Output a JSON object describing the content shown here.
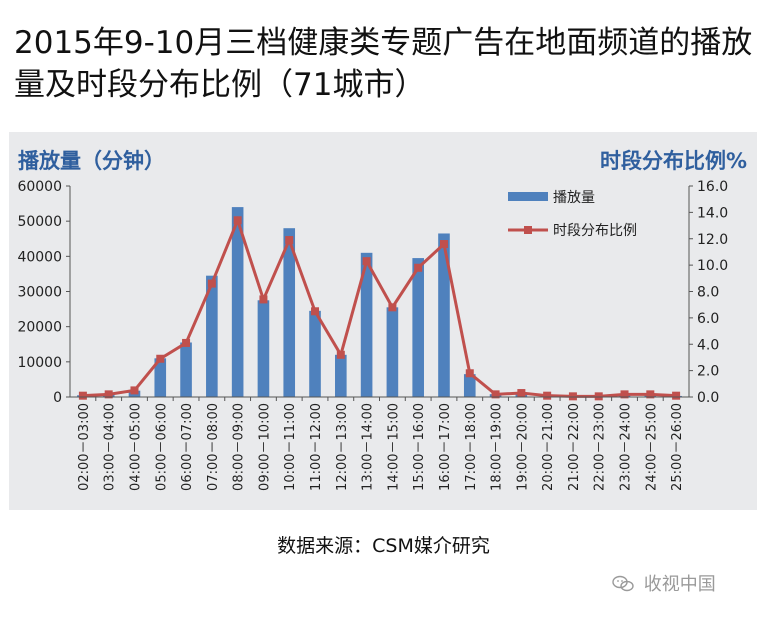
{
  "title": "2015年9-10月三档健康类专题广告在地面频道的播放量及时段分布比例（71城市）",
  "source_text": "数据来源：CSM媒介研究",
  "watermark": "收视中国",
  "colors": {
    "bar": "#4f81bd",
    "line": "#c0504d",
    "axis_title": "#2f5f9e",
    "panel": "#e9eaec"
  },
  "chart_data": {
    "type": "bar+line",
    "ylabel_left": "播放量（分钟）",
    "ylabel_right": "时段分布比例%",
    "ylim_left": [
      0,
      60000
    ],
    "ylim_right": [
      0,
      16
    ],
    "yticks_left": [
      "0",
      "10000",
      "20000",
      "30000",
      "40000",
      "50000",
      "60000"
    ],
    "yticks_right": [
      "0.0",
      "2.0",
      "4.0",
      "6.0",
      "8.0",
      "10.0",
      "12.0",
      "14.0",
      "16.0"
    ],
    "categories": [
      "02:00－03:00",
      "03:00－04:00",
      "04:00－05:00",
      "05:00－06:00",
      "06:00－07:00",
      "07:00－08:00",
      "08:00－09:00",
      "09:00－10:00",
      "10:00－11:00",
      "11:00－12:00",
      "12:00－13:00",
      "13:00－14:00",
      "14:00－15:00",
      "15:00－16:00",
      "16:00－17:00",
      "17:00－18:00",
      "18:00－19:00",
      "19:00－20:00",
      "20:00－21:00",
      "21:00－22:00",
      "22:00－23:00",
      "23:00－24:00",
      "24:00－25:00",
      "25:00－26:00"
    ],
    "series": [
      {
        "name": "播放量",
        "type": "bar",
        "axis": "left",
        "values": [
          500,
          700,
          1800,
          11000,
          15500,
          34500,
          54000,
          27500,
          48000,
          24500,
          12000,
          41000,
          25500,
          39500,
          46500,
          6500,
          800,
          1000,
          300,
          200,
          200,
          700,
          700,
          300
        ]
      },
      {
        "name": "时段分布比例",
        "type": "line",
        "axis": "right",
        "values": [
          0.1,
          0.2,
          0.5,
          2.9,
          4.1,
          8.6,
          13.4,
          7.4,
          11.9,
          6.5,
          3.2,
          10.3,
          6.8,
          9.8,
          11.6,
          1.8,
          0.2,
          0.3,
          0.1,
          0.05,
          0.05,
          0.2,
          0.2,
          0.1
        ]
      }
    ],
    "legend_position": "top-right",
    "grid": false
  }
}
